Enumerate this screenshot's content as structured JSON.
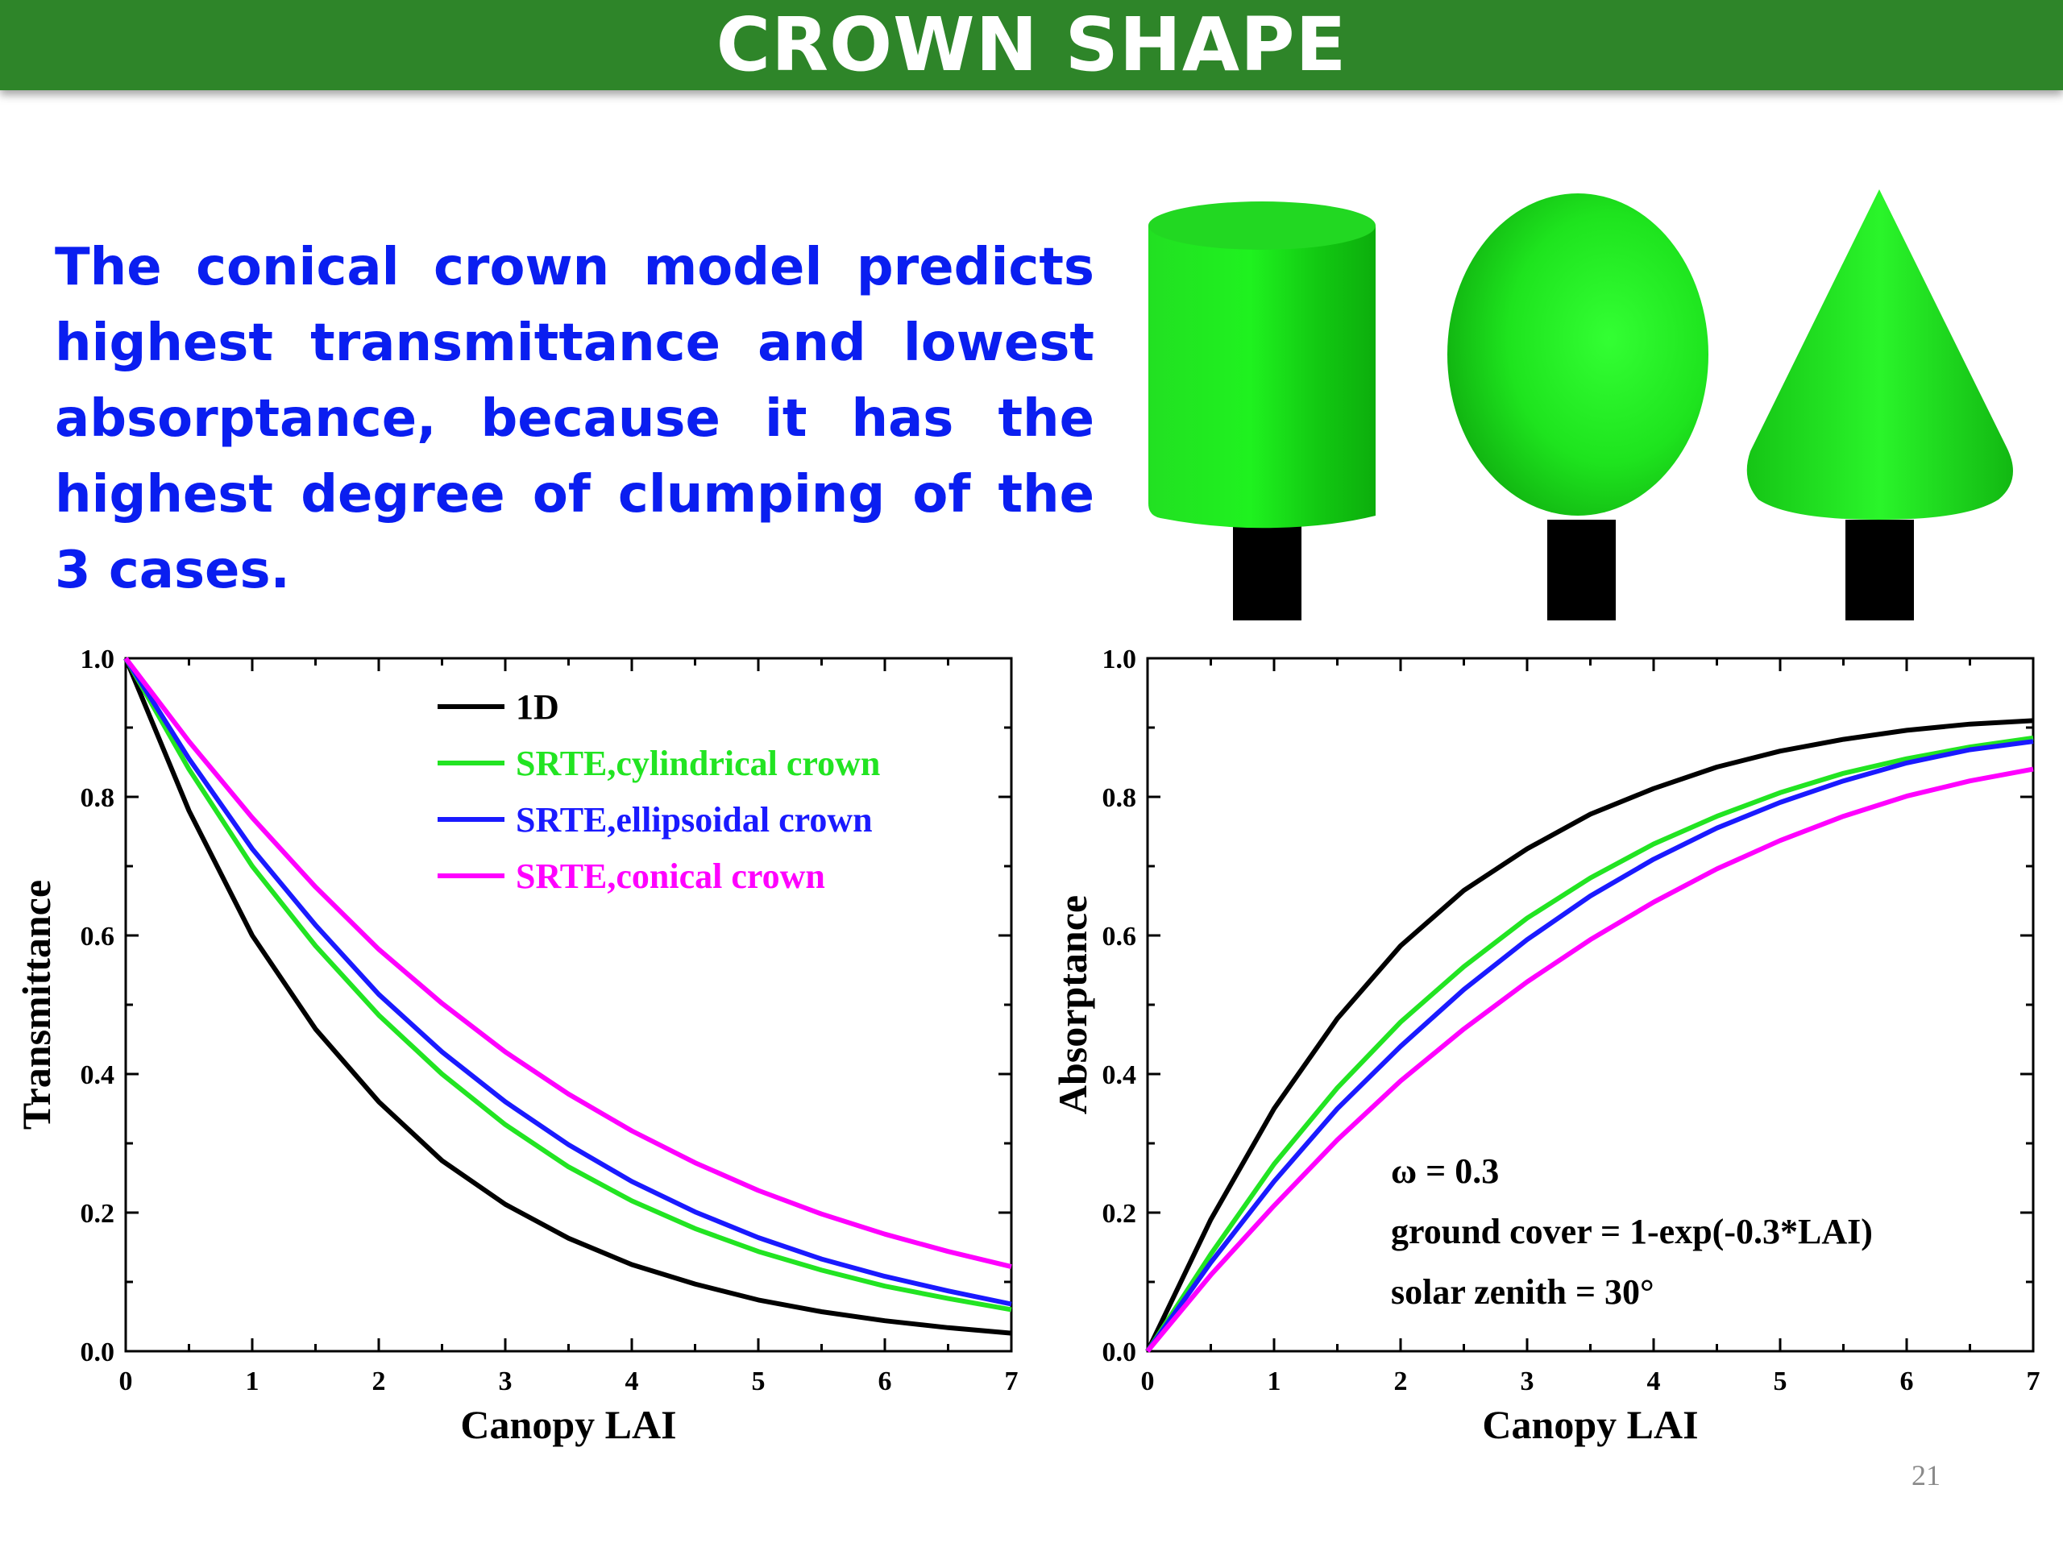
{
  "slide": {
    "title": "CROWN SHAPE",
    "summary": "The conical crown model predicts highest transmittance and lowest absorptance, because it has the highest degree of clumping of the 3 cases.",
    "page_number": "21"
  },
  "shapes": [
    {
      "name": "cylinder",
      "color": "#22e422"
    },
    {
      "name": "ellipsoid",
      "color": "#22e422"
    },
    {
      "name": "cone",
      "color": "#22e422"
    }
  ],
  "chart_data": [
    {
      "type": "line",
      "xlabel": "Canopy LAI",
      "ylabel": "Transmittance",
      "xlim": [
        0,
        7
      ],
      "ylim": [
        0,
        1.0
      ],
      "xticks": [
        "0",
        "1",
        "2",
        "3",
        "4",
        "5",
        "6",
        "7"
      ],
      "yticks": [
        "0.0",
        "0.2",
        "0.4",
        "0.6",
        "0.8",
        "1.0"
      ],
      "legend": "top-right",
      "x": [
        0,
        0.5,
        1,
        1.5,
        2,
        2.5,
        3,
        3.5,
        4,
        4.5,
        5,
        5.5,
        6,
        6.5,
        7
      ],
      "series": [
        {
          "name": "1D",
          "color": "#000000",
          "values": [
            1.0,
            0.78,
            0.6,
            0.465,
            0.36,
            0.275,
            0.212,
            0.163,
            0.125,
            0.097,
            0.074,
            0.057,
            0.044,
            0.034,
            0.026
          ]
        },
        {
          "name": "SRTE,cylindrical crown",
          "color": "#22e422",
          "values": [
            1.0,
            0.84,
            0.7,
            0.585,
            0.485,
            0.4,
            0.327,
            0.266,
            0.217,
            0.177,
            0.144,
            0.117,
            0.094,
            0.076,
            0.06
          ]
        },
        {
          "name": "SRTE,ellipsoidal crown",
          "color": "#1a1aff",
          "values": [
            1.0,
            0.855,
            0.725,
            0.615,
            0.515,
            0.432,
            0.36,
            0.298,
            0.245,
            0.201,
            0.164,
            0.133,
            0.108,
            0.087,
            0.068
          ]
        },
        {
          "name": "SRTE,conical crown",
          "color": "#ff00ff",
          "values": [
            1.0,
            0.88,
            0.77,
            0.67,
            0.58,
            0.502,
            0.432,
            0.371,
            0.318,
            0.272,
            0.232,
            0.198,
            0.169,
            0.144,
            0.122
          ]
        }
      ]
    },
    {
      "type": "line",
      "xlabel": "Canopy LAI",
      "ylabel": "Absorptance",
      "xlim": [
        0,
        7
      ],
      "ylim": [
        0,
        1.0
      ],
      "xticks": [
        "0",
        "1",
        "2",
        "3",
        "4",
        "5",
        "6",
        "7"
      ],
      "yticks": [
        "0.0",
        "0.2",
        "0.4",
        "0.6",
        "0.8",
        "1.0"
      ],
      "x": [
        0,
        0.5,
        1,
        1.5,
        2,
        2.5,
        3,
        3.5,
        4,
        4.5,
        5,
        5.5,
        6,
        6.5,
        7
      ],
      "series": [
        {
          "color": "#000000",
          "values": [
            0.0,
            0.19,
            0.35,
            0.48,
            0.585,
            0.665,
            0.725,
            0.775,
            0.812,
            0.843,
            0.866,
            0.883,
            0.896,
            0.905,
            0.91
          ]
        },
        {
          "color": "#22e422",
          "values": [
            0.0,
            0.14,
            0.27,
            0.38,
            0.475,
            0.555,
            0.625,
            0.683,
            0.732,
            0.772,
            0.806,
            0.834,
            0.855,
            0.872,
            0.885
          ]
        },
        {
          "color": "#1a1aff",
          "values": [
            0.0,
            0.128,
            0.245,
            0.35,
            0.44,
            0.522,
            0.594,
            0.657,
            0.71,
            0.755,
            0.792,
            0.823,
            0.849,
            0.868,
            0.88
          ]
        },
        {
          "color": "#ff00ff",
          "values": [
            0.0,
            0.11,
            0.21,
            0.305,
            0.39,
            0.465,
            0.533,
            0.594,
            0.648,
            0.696,
            0.737,
            0.772,
            0.801,
            0.823,
            0.84
          ]
        }
      ],
      "annotations": [
        "ω = 0.3",
        "ground cover = 1-exp(-0.3*LAI)",
        "solar zenith = 30°"
      ]
    }
  ]
}
